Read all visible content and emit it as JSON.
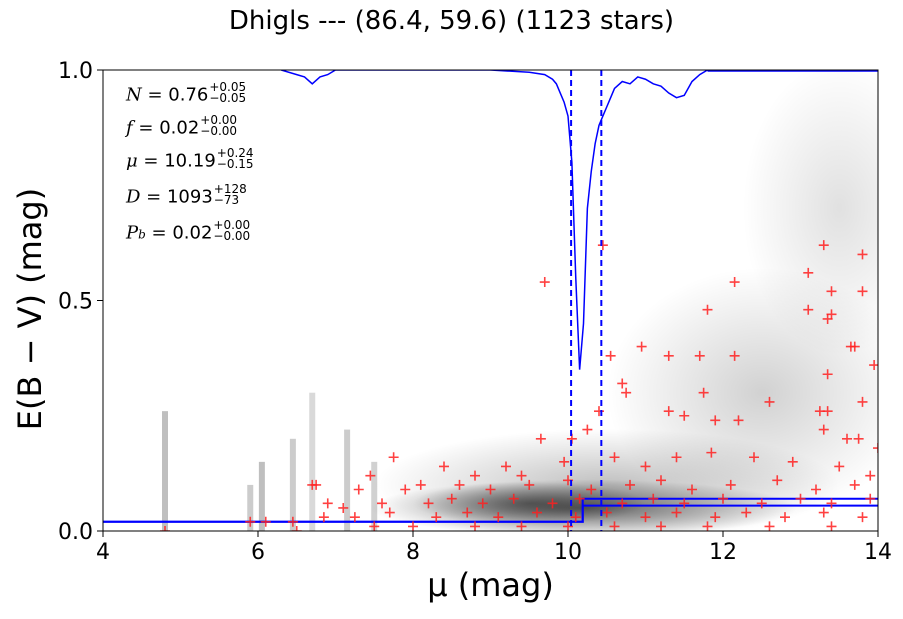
{
  "chart_data": {
    "type": "scatter",
    "title": "Dhigls --- (86.4, 59.6) (1123 stars)",
    "xlabel": "μ (mag)",
    "ylabel": "E(B − V) (mag)",
    "xlim": [
      4,
      14
    ],
    "ylim": [
      0,
      1
    ],
    "xticks": [
      "4",
      "6",
      "8",
      "10",
      "12",
      "14"
    ],
    "yticks": [
      "0.0",
      "0.5",
      "1.0"
    ],
    "grid": false,
    "annotations": {
      "N": {
        "label": "N = ",
        "value": "0.76",
        "plus": "+0.05",
        "minus": "−0.05"
      },
      "f": {
        "label": "f = ",
        "value": "0.02",
        "plus": "+0.00",
        "minus": "−0.00"
      },
      "mu": {
        "label": "μ = ",
        "value": "10.19",
        "plus": "+0.24",
        "minus": "−0.15"
      },
      "D": {
        "label": "D = ",
        "value": "1093",
        "plus": "+128",
        "minus": "−73"
      },
      "Pb": {
        "label": "P",
        "sub": "b",
        "eq": " = ",
        "value": "0.02",
        "plus": "+0.00",
        "minus": "−0.00"
      }
    },
    "dashed_lines_mu": [
      10.04,
      10.43
    ],
    "step_profiles": [
      {
        "name": "",
        "color": "#0000ff",
        "x": [
          4,
          10.19,
          10.19,
          14
        ],
        "y": [
          0.02,
          0.02,
          0.07,
          0.07
        ]
      },
      {
        "name": "",
        "color": "#0000ff",
        "x": [
          4,
          10.19,
          10.19,
          14
        ],
        "y": [
          0.02,
          0.02,
          0.055,
          0.055
        ]
      }
    ],
    "probability_curve": {
      "color": "#0000ff",
      "x": [
        6.3,
        6.5,
        6.6,
        6.7,
        6.8,
        6.9,
        7.0,
        7.3,
        8.0,
        9.0,
        9.5,
        9.7,
        9.8,
        9.85,
        9.9,
        9.95,
        10.0,
        10.05,
        10.1,
        10.15,
        10.2,
        10.25,
        10.3,
        10.35,
        10.4,
        10.45,
        10.5,
        10.55,
        10.6,
        10.7,
        10.8,
        10.9,
        11.0,
        11.1,
        11.2,
        11.3,
        11.4,
        11.5,
        11.6,
        11.7,
        11.8
      ],
      "y": [
        1.0,
        0.99,
        0.985,
        0.97,
        0.985,
        0.99,
        1.0,
        1.0,
        1.0,
        1.0,
        0.995,
        0.99,
        0.98,
        0.97,
        0.95,
        0.93,
        0.9,
        0.8,
        0.55,
        0.35,
        0.45,
        0.7,
        0.78,
        0.84,
        0.88,
        0.9,
        0.92,
        0.94,
        0.96,
        0.975,
        0.97,
        0.985,
        0.98,
        0.97,
        0.965,
        0.95,
        0.94,
        0.945,
        0.975,
        0.99,
        1.0
      ]
    },
    "density_clusters": [
      {
        "x": 10.2,
        "y": 0.05,
        "w": 5.5,
        "h": 0.08,
        "alpha": 0.55
      },
      {
        "x": 10.5,
        "y": 0.1,
        "w": 6.0,
        "h": 0.2,
        "alpha": 0.25
      },
      {
        "x": 12.5,
        "y": 0.3,
        "w": 4.0,
        "h": 0.5,
        "alpha": 0.18
      },
      {
        "x": 13.5,
        "y": 0.7,
        "w": 2.5,
        "h": 0.6,
        "alpha": 0.12
      },
      {
        "x": 9.5,
        "y": 0.06,
        "w": 3.0,
        "h": 0.05,
        "alpha": 0.4
      }
    ],
    "density_streaks": [
      {
        "x": 4.8,
        "y0": 0.0,
        "y1": 0.26,
        "alpha": 0.25
      },
      {
        "x": 5.9,
        "y0": 0.0,
        "y1": 0.1,
        "alpha": 0.2
      },
      {
        "x": 6.05,
        "y0": 0.0,
        "y1": 0.15,
        "alpha": 0.25
      },
      {
        "x": 6.45,
        "y0": 0.0,
        "y1": 0.2,
        "alpha": 0.2
      },
      {
        "x": 6.7,
        "y0": 0.0,
        "y1": 0.3,
        "alpha": 0.15
      },
      {
        "x": 7.15,
        "y0": 0.0,
        "y1": 0.22,
        "alpha": 0.2
      },
      {
        "x": 7.5,
        "y0": 0.0,
        "y1": 0.15,
        "alpha": 0.18
      }
    ],
    "stars": [
      [
        9.7,
        0.54
      ],
      [
        10.45,
        0.62
      ],
      [
        13.3,
        0.62
      ],
      [
        13.8,
        0.6
      ],
      [
        13.1,
        0.56
      ],
      [
        12.15,
        0.54
      ],
      [
        13.4,
        0.52
      ],
      [
        13.8,
        0.52
      ],
      [
        11.8,
        0.48
      ],
      [
        13.1,
        0.48
      ],
      [
        13.35,
        0.46
      ],
      [
        13.4,
        0.47
      ],
      [
        10.55,
        0.38
      ],
      [
        10.95,
        0.4
      ],
      [
        11.3,
        0.38
      ],
      [
        11.7,
        0.38
      ],
      [
        12.15,
        0.38
      ],
      [
        13.65,
        0.4
      ],
      [
        13.7,
        0.4
      ],
      [
        13.95,
        0.36
      ],
      [
        10.7,
        0.32
      ],
      [
        11.75,
        0.3
      ],
      [
        13.35,
        0.34
      ],
      [
        10.75,
        0.3
      ],
      [
        11.3,
        0.26
      ],
      [
        11.5,
        0.25
      ],
      [
        11.9,
        0.24
      ],
      [
        12.2,
        0.24
      ],
      [
        12.6,
        0.28
      ],
      [
        13.25,
        0.26
      ],
      [
        13.35,
        0.26
      ],
      [
        13.8,
        0.28
      ],
      [
        10.4,
        0.26
      ],
      [
        10.05,
        0.2
      ],
      [
        10.25,
        0.22
      ],
      [
        9.65,
        0.2
      ],
      [
        13.3,
        0.22
      ],
      [
        13.6,
        0.2
      ],
      [
        13.75,
        0.2
      ],
      [
        14.0,
        0.18
      ],
      [
        7.75,
        0.16
      ],
      [
        7.45,
        0.12
      ],
      [
        8.4,
        0.14
      ],
      [
        8.8,
        0.12
      ],
      [
        9.2,
        0.14
      ],
      [
        9.4,
        0.12
      ],
      [
        9.95,
        0.15
      ],
      [
        10.6,
        0.16
      ],
      [
        11.0,
        0.14
      ],
      [
        11.4,
        0.16
      ],
      [
        11.85,
        0.17
      ],
      [
        12.4,
        0.16
      ],
      [
        12.9,
        0.15
      ],
      [
        13.5,
        0.14
      ],
      [
        13.9,
        0.12
      ],
      [
        6.7,
        0.1
      ],
      [
        6.75,
        0.1
      ],
      [
        7.3,
        0.09
      ],
      [
        7.9,
        0.09
      ],
      [
        8.1,
        0.1
      ],
      [
        8.6,
        0.1
      ],
      [
        9.0,
        0.09
      ],
      [
        9.5,
        0.1
      ],
      [
        10.0,
        0.11
      ],
      [
        10.3,
        0.09
      ],
      [
        10.8,
        0.1
      ],
      [
        11.2,
        0.11
      ],
      [
        11.6,
        0.09
      ],
      [
        12.1,
        0.1
      ],
      [
        12.7,
        0.11
      ],
      [
        13.2,
        0.09
      ],
      [
        13.7,
        0.1
      ],
      [
        6.9,
        0.06
      ],
      [
        7.1,
        0.05
      ],
      [
        7.6,
        0.06
      ],
      [
        8.2,
        0.06
      ],
      [
        8.5,
        0.07
      ],
      [
        8.9,
        0.06
      ],
      [
        9.3,
        0.07
      ],
      [
        9.8,
        0.06
      ],
      [
        10.15,
        0.07
      ],
      [
        10.7,
        0.06
      ],
      [
        11.1,
        0.07
      ],
      [
        11.5,
        0.06
      ],
      [
        12.0,
        0.07
      ],
      [
        12.5,
        0.06
      ],
      [
        13.0,
        0.07
      ],
      [
        13.4,
        0.06
      ],
      [
        13.9,
        0.07
      ],
      [
        5.9,
        0.02
      ],
      [
        6.1,
        0.02
      ],
      [
        6.45,
        0.02
      ],
      [
        6.85,
        0.03
      ],
      [
        7.25,
        0.03
      ],
      [
        7.7,
        0.04
      ],
      [
        8.3,
        0.03
      ],
      [
        8.7,
        0.04
      ],
      [
        9.1,
        0.03
      ],
      [
        9.6,
        0.04
      ],
      [
        10.1,
        0.03
      ],
      [
        10.5,
        0.04
      ],
      [
        11.0,
        0.03
      ],
      [
        11.4,
        0.04
      ],
      [
        11.9,
        0.03
      ],
      [
        12.3,
        0.04
      ],
      [
        12.8,
        0.03
      ],
      [
        13.3,
        0.04
      ],
      [
        13.8,
        0.03
      ],
      [
        4.8,
        0.0
      ],
      [
        6.5,
        0.0
      ],
      [
        7.5,
        0.01
      ],
      [
        8.0,
        0.01
      ],
      [
        8.8,
        0.01
      ],
      [
        9.4,
        0.01
      ],
      [
        10.0,
        0.01
      ],
      [
        10.6,
        0.01
      ],
      [
        11.2,
        0.01
      ],
      [
        11.8,
        0.01
      ],
      [
        12.6,
        0.01
      ],
      [
        13.4,
        0.01
      ]
    ]
  }
}
